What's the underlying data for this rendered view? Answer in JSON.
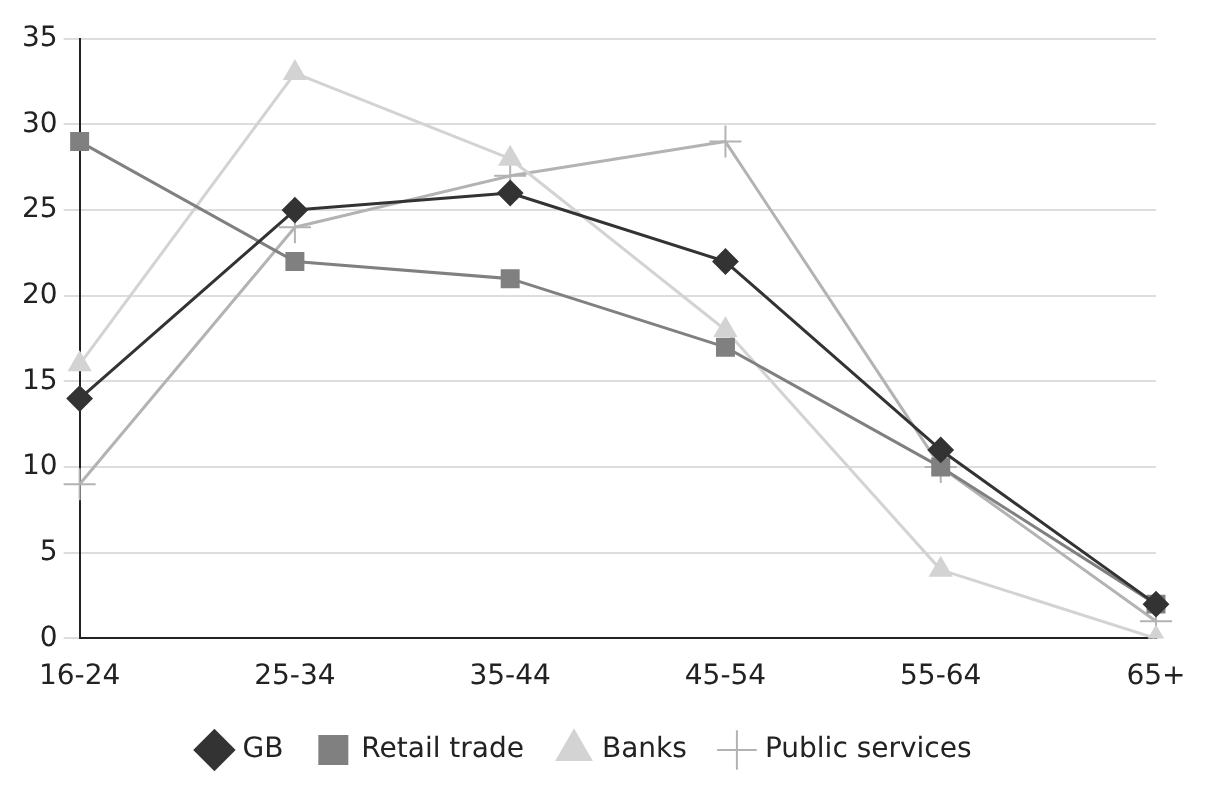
{
  "chart_data": {
    "type": "line",
    "categories": [
      "16-24",
      "25-34",
      "35-44",
      "45-54",
      "55-64",
      "65+"
    ],
    "series": [
      {
        "name": "GB",
        "color": "#333333",
        "marker": "diamond",
        "values": [
          14,
          25,
          26,
          22,
          11,
          2
        ]
      },
      {
        "name": "Retail trade",
        "color": "#808080",
        "marker": "square",
        "values": [
          29,
          22,
          21,
          17,
          10,
          2
        ]
      },
      {
        "name": "Banks",
        "color": "#d3d3d3",
        "marker": "triangle",
        "values": [
          16,
          33,
          28,
          18,
          4,
          0
        ]
      },
      {
        "name": "Public services",
        "color": "#b3b3b3",
        "marker": "cross",
        "values": [
          9,
          24,
          27,
          29,
          10,
          1
        ]
      }
    ],
    "ylim": [
      0,
      35
    ],
    "yticks": [
      0,
      5,
      10,
      15,
      20,
      25,
      30,
      35
    ],
    "grid": "y",
    "legend": "bottom",
    "line_style": "solid"
  }
}
